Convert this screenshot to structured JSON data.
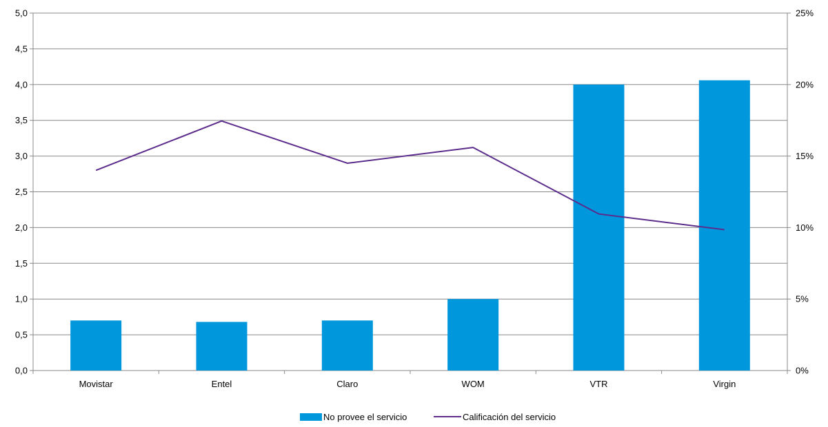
{
  "chart_data": {
    "type": "bar",
    "categories": [
      "Movistar",
      "Entel",
      "Claro",
      "WOM",
      "VTR",
      "Virgin"
    ],
    "series": [
      {
        "name": "No provee el servicio",
        "type": "bar",
        "axis": "right",
        "values": [
          3.5,
          3.4,
          3.5,
          5.0,
          20.0,
          20.3
        ],
        "color": "#0097DD"
      },
      {
        "name": "Calificación del servicio",
        "type": "line",
        "axis": "left",
        "values": [
          2.8,
          3.49,
          2.9,
          3.12,
          2.19,
          1.97
        ],
        "color": "#5B2C8B"
      }
    ],
    "y_left": {
      "range": [
        0,
        5
      ],
      "ticks": [
        0,
        0.5,
        1.0,
        1.5,
        2.0,
        2.5,
        3.0,
        3.5,
        4.0,
        4.5,
        5.0
      ],
      "tick_labels": [
        "0,0",
        "0,5",
        "1,0",
        "1,5",
        "2,0",
        "2,5",
        "3,0",
        "3,5",
        "4,0",
        "4,5",
        "5,0"
      ]
    },
    "y_right": {
      "range": [
        0,
        25
      ],
      "ticks": [
        0,
        5,
        10,
        15,
        20,
        25
      ],
      "tick_labels": [
        "0%",
        "5%",
        "10%",
        "15%",
        "20%",
        "25%"
      ]
    },
    "grid": true,
    "gridline_color": "#888888",
    "legend_position": "bottom"
  }
}
